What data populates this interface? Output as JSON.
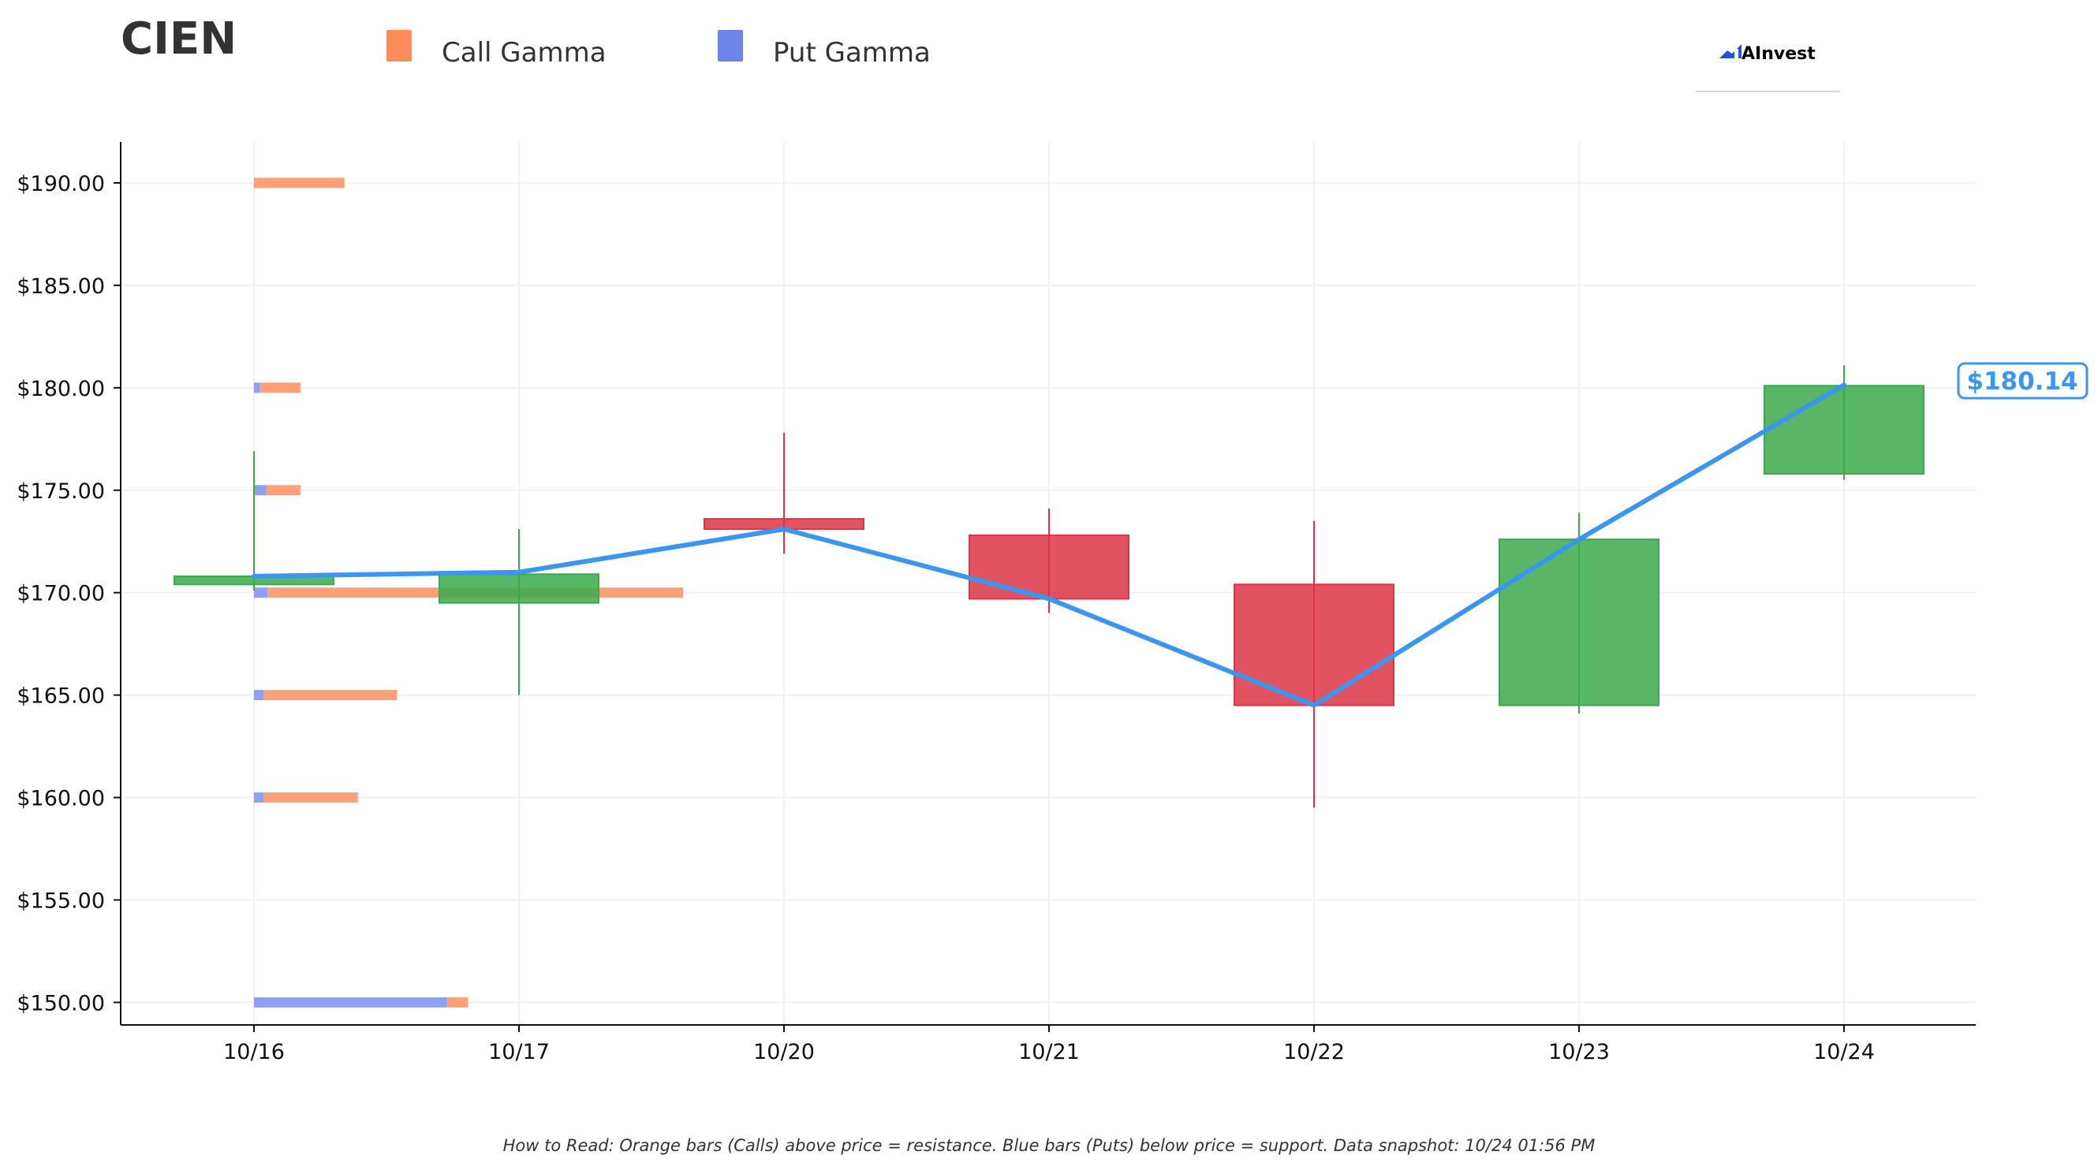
{
  "ticker": "CIEN",
  "brand": {
    "name": "AInvest",
    "color": "#1a56db"
  },
  "legend": [
    {
      "label": "Call Gamma",
      "color": "#ff8c5a"
    },
    {
      "label": "Put Gamma",
      "color": "#6b86e8"
    }
  ],
  "footnote": "How to Read: Orange bars (Calls) above price = resistance. Blue bars (Puts) below price = support. Data snapshot: 10/24 01:56 PM",
  "colors": {
    "up": "#3aaa4c",
    "down": "#dc3545",
    "call": "#ffa07a",
    "put": "#8ea1ee",
    "price_line": "#3a96f0"
  },
  "chart_data": {
    "type": "candlestick",
    "title": "CIEN",
    "xlabel": "",
    "ylabel": "",
    "categories": [
      "10/16",
      "10/17",
      "10/20",
      "10/21",
      "10/22",
      "10/23",
      "10/24"
    ],
    "ylim": [
      148.9,
      192.0
    ],
    "yticks": [
      150,
      155,
      160,
      165,
      170,
      175,
      180,
      185,
      190
    ],
    "ytick_labels": [
      "$150.00",
      "$155.00",
      "$160.00",
      "$165.00",
      "$170.00",
      "$175.00",
      "$180.00",
      "$185.00",
      "$190.00"
    ],
    "grid": true,
    "legend_position": "top",
    "candles": [
      {
        "date": "10/16",
        "open": 170.4,
        "high": 176.9,
        "low": 170.1,
        "close": 170.8
      },
      {
        "date": "10/17",
        "open": 169.5,
        "high": 173.1,
        "low": 165.0,
        "close": 170.9
      },
      {
        "date": "10/20",
        "open": 173.6,
        "high": 177.8,
        "low": 171.9,
        "close": 173.1
      },
      {
        "date": "10/21",
        "open": 172.8,
        "high": 174.1,
        "low": 169.0,
        "close": 169.7
      },
      {
        "date": "10/22",
        "open": 170.4,
        "high": 173.5,
        "low": 159.5,
        "close": 164.5
      },
      {
        "date": "10/23",
        "open": 164.5,
        "high": 173.9,
        "low": 164.1,
        "close": 172.6
      },
      {
        "date": "10/24",
        "open": 175.8,
        "high": 181.1,
        "low": 175.5,
        "close": 180.1
      }
    ],
    "price_line": {
      "x": [
        "10/16",
        "10/17",
        "10/20",
        "10/21",
        "10/22",
        "10/23",
        "10/24"
      ],
      "y": [
        170.8,
        171.0,
        173.1,
        169.7,
        164.5,
        172.6,
        180.14
      ]
    },
    "last_price_label": "$180.14",
    "gamma_levels": [
      {
        "strike": 190,
        "call": 0.74,
        "put": 0.0
      },
      {
        "strike": 180,
        "call": 0.33,
        "put": 0.05
      },
      {
        "strike": 175,
        "call": 0.28,
        "put": 0.1
      },
      {
        "strike": 170,
        "call": 3.4,
        "put": 0.11
      },
      {
        "strike": 165,
        "call": 1.09,
        "put": 0.08
      },
      {
        "strike": 160,
        "call": 0.77,
        "put": 0.08
      },
      {
        "strike": 150,
        "call": 0.17,
        "put": 1.58
      }
    ]
  }
}
